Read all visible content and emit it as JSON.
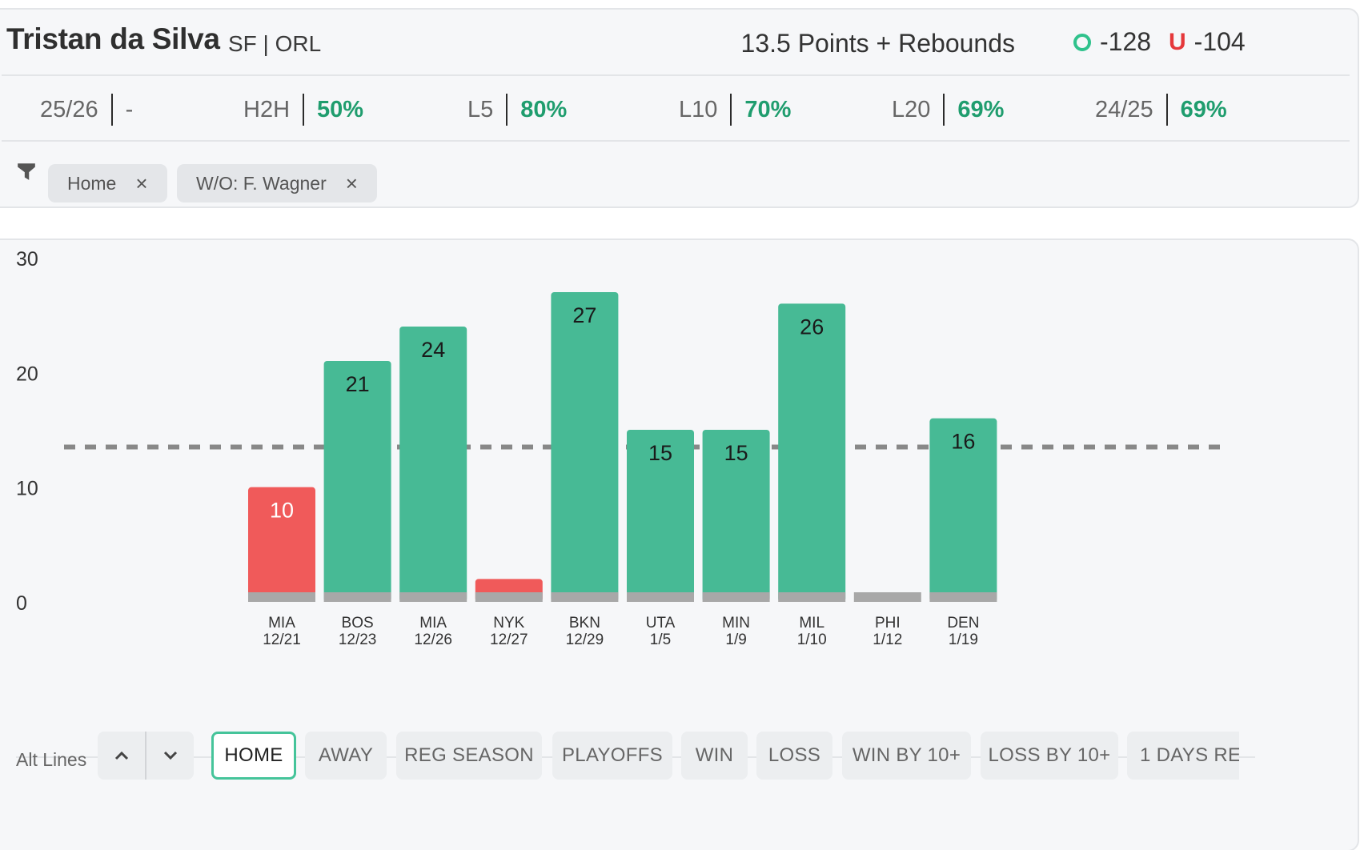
{
  "player": {
    "name": "Tristan da Silva",
    "position_team": "SF | ORL"
  },
  "market": {
    "label": "13.5 Points + Rebounds",
    "over_tag": "O",
    "over_odds": "-128",
    "under_tag": "U",
    "under_odds": "-104"
  },
  "stats": [
    {
      "label": "25/26",
      "value": "-"
    },
    {
      "label": "H2H",
      "value": "50%"
    },
    {
      "label": "L5",
      "value": "80%"
    },
    {
      "label": "L10",
      "value": "70%"
    },
    {
      "label": "L20",
      "value": "69%"
    },
    {
      "label": "24/25",
      "value": "69%"
    }
  ],
  "filters": [
    {
      "label": "Home",
      "close": "×"
    },
    {
      "label": "W/O: F. Wagner",
      "close": "×"
    }
  ],
  "chart_data": {
    "type": "bar",
    "title": "",
    "xlabel": "",
    "ylabel": "",
    "ylim": [
      0,
      30
    ],
    "yticks": [
      "0",
      "10",
      "20",
      "30"
    ],
    "line": 13.5,
    "categories": [
      {
        "team": "MIA",
        "date": "12/21"
      },
      {
        "team": "BOS",
        "date": "12/23"
      },
      {
        "team": "MIA",
        "date": "12/26"
      },
      {
        "team": "NYK",
        "date": "12/27"
      },
      {
        "team": "BKN",
        "date": "12/29"
      },
      {
        "team": "UTA",
        "date": "1/5"
      },
      {
        "team": "MIN",
        "date": "1/9"
      },
      {
        "team": "MIL",
        "date": "1/10"
      },
      {
        "team": "PHI",
        "date": "1/12"
      },
      {
        "team": "DEN",
        "date": "1/19"
      }
    ],
    "values": [
      10,
      21,
      24,
      2,
      27,
      15,
      15,
      26,
      0,
      16
    ],
    "labels": [
      "10",
      "21",
      "24",
      "",
      "27",
      "15",
      "15",
      "26",
      "",
      "16"
    ],
    "colors": {
      "over": "#47ba95",
      "under": "#f05a5a",
      "base": "#a8a8a8",
      "line": "#888888"
    }
  },
  "alt_lines": {
    "label": "Alt Lines",
    "up": "^",
    "down": "v"
  },
  "split_tabs": [
    "HOME",
    "AWAY",
    "REG SEASON",
    "PLAYOFFS",
    "WIN",
    "LOSS",
    "WIN BY 10+",
    "LOSS BY 10+",
    "1 DAYS RE"
  ],
  "active_tab": "HOME",
  "accent_colors": {
    "green": "#1f9d6e",
    "over_icon": "#2fc28c",
    "under_icon": "#e5383b"
  }
}
